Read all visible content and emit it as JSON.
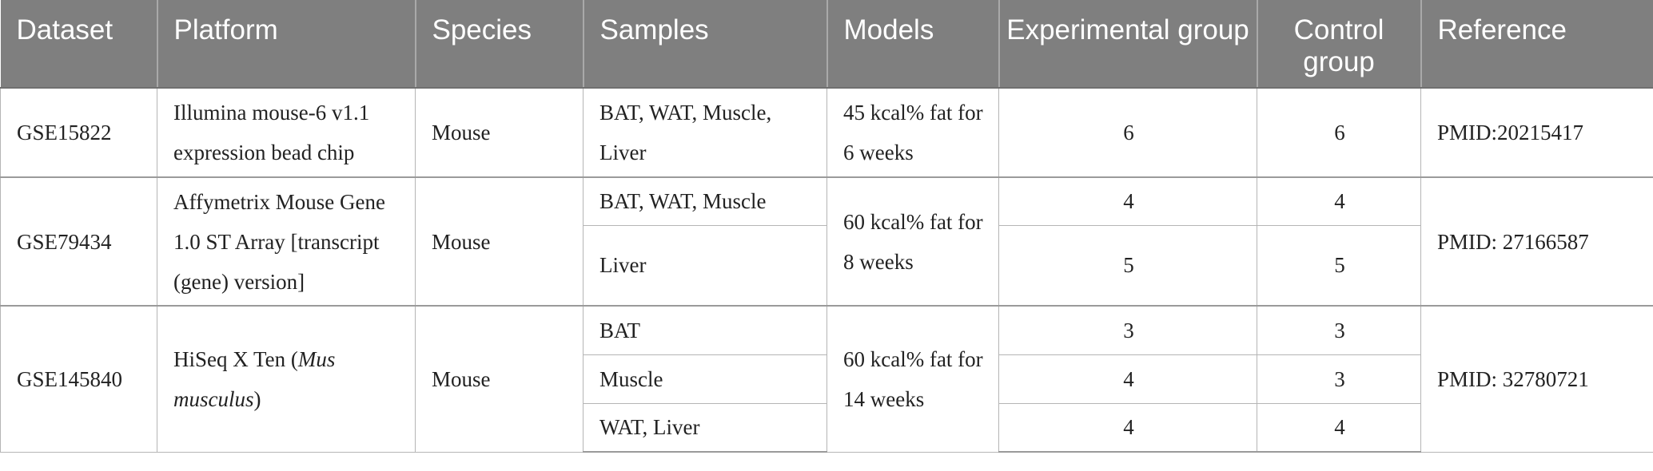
{
  "headers": [
    "Dataset",
    "Platform",
    "Species",
    "Samples",
    "Models",
    "Experimental group",
    "Control group",
    "Reference"
  ],
  "rows": [
    {
      "dataset": "GSE15822",
      "platform": "Illumina mouse-6 v1.1 expression bead chip",
      "species": "Mouse",
      "model": "45 kcal% fat for 6 weeks",
      "reference": "PMID:20215417",
      "samples": [
        {
          "samples": "BAT, WAT, Muscle, Liver",
          "experimental": "6",
          "control": "6"
        }
      ]
    },
    {
      "dataset": "GSE79434",
      "platform": "Affymetrix Mouse Gene 1.0 ST Array [transcript (gene) version]",
      "species": "Mouse",
      "model": "60 kcal% fat for 8 weeks",
      "reference": "PMID: 27166587",
      "samples": [
        {
          "samples": "BAT, WAT, Muscle",
          "experimental": "4",
          "control": "4"
        },
        {
          "samples": "Liver",
          "experimental": "5",
          "control": "5"
        }
      ]
    },
    {
      "dataset": "GSE145840",
      "platform_prefix": "HiSeq X Ten (",
      "platform_italic": "Mus musculus",
      "platform_suffix": ")",
      "species": "Mouse",
      "model": "60 kcal% fat for 14 weeks",
      "reference": "PMID: 32780721",
      "samples": [
        {
          "samples": "BAT",
          "experimental": "3",
          "control": "3"
        },
        {
          "samples": "Muscle",
          "experimental": "4",
          "control": "3"
        },
        {
          "samples": "WAT, Liver",
          "experimental": "4",
          "control": "4"
        }
      ]
    }
  ],
  "colors": {
    "header_bg": "#7f7f7f",
    "header_text": "#ffffff",
    "grid": "#b5b5b5"
  }
}
